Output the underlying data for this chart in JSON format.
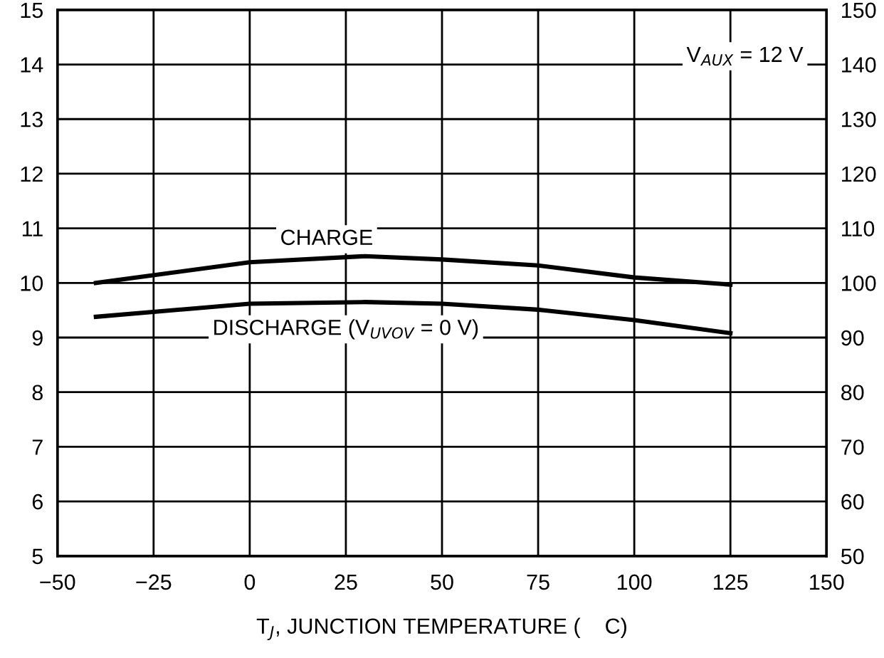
{
  "chart_data": {
    "type": "line",
    "xlabel": "T$_{J}$, JUNCTION TEMPERATURE (    C)",
    "x": [
      -40,
      0,
      30,
      50,
      75,
      100,
      125
    ],
    "series": [
      {
        "color": "#000000",
        "values": [
          10.0,
          10.38,
          10.49,
          10.43,
          10.32,
          10.1,
          9.97
        ]
      },
      {
        "color": "#000000",
        "values": [
          9.38,
          9.62,
          9.65,
          9.62,
          9.51,
          9.32,
          9.08
        ]
      }
    ],
    "annotations": [
      "V$_{AUX}$ = 12 V",
      "CHARGE",
      "DISCHARGE (V$_{UVOV}$ = 0 V)"
    ],
    "xlim": [
      -50,
      150
    ],
    "xticks": [
      {
        "value": -50,
        "label": "−50"
      },
      {
        "value": -25,
        "label": "−25"
      },
      0,
      25,
      50,
      75,
      100,
      125,
      150
    ],
    "ylim": [
      5,
      15
    ],
    "yticks": [
      5,
      6,
      7,
      8,
      9,
      10,
      11,
      12,
      13,
      14,
      15
    ],
    "y2lim": [
      50,
      150
    ],
    "y2ticks": [
      50,
      60,
      70,
      80,
      90,
      100,
      110,
      120,
      130,
      140,
      150
    ],
    "grid": true,
    "marker": "none",
    "line_style": "solid"
  }
}
